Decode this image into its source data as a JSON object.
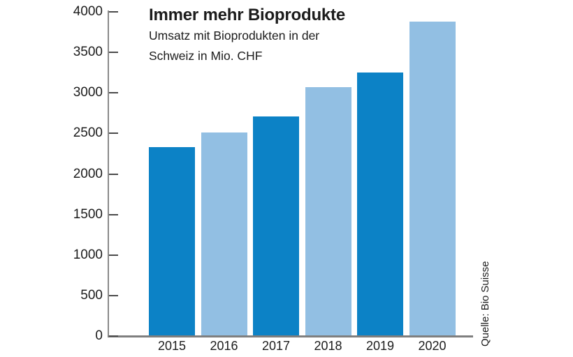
{
  "header": {
    "title": "Immer mehr Bioprodukte",
    "subtitle_lines": [
      "Umsatz mit Bioprodukten in der",
      "Schweiz in Mio. CHF"
    ]
  },
  "source": "Quelle: Bio Suisse",
  "colors": {
    "bar_dark_blue": "#0c82c6",
    "bar_light_blue": "#92bfe3",
    "axis_gray": "#7f7f7f",
    "text": "#1c1c1c"
  },
  "chart_data": {
    "type": "bar",
    "title": "Immer mehr Bioprodukte",
    "subtitle": "Umsatz mit Bioprodukten in der Schweiz in Mio. CHF",
    "categories": [
      "2015",
      "2016",
      "2017",
      "2018",
      "2019",
      "2020"
    ],
    "values": [
      2325,
      2505,
      2705,
      3065,
      3240,
      3870
    ],
    "bar_colors": [
      "#0c82c6",
      "#92bfe3",
      "#0c82c6",
      "#92bfe3",
      "#0c82c6",
      "#92bfe3"
    ],
    "unit": "Mio. CHF",
    "xlabel": "",
    "ylabel": "",
    "ylim": [
      0,
      4000
    ],
    "yticks": [
      0,
      500,
      1000,
      1500,
      2000,
      2500,
      3000,
      3500,
      4000
    ],
    "grid": false,
    "legend": "none",
    "source": "Quelle: Bio Suisse"
  }
}
